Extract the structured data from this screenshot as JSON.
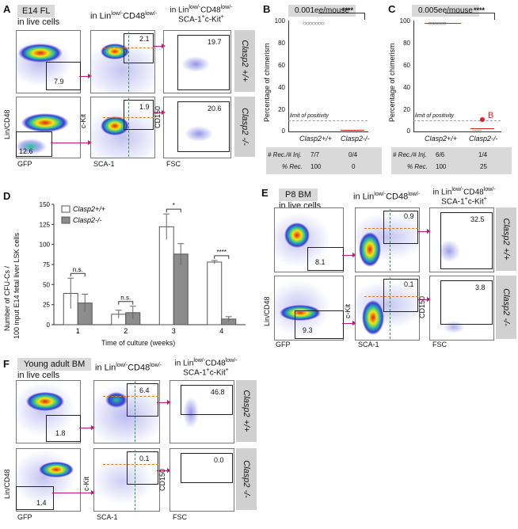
{
  "panelA": {
    "letter": "A",
    "tag": "E14 FL",
    "col1_title": "in live cells",
    "col2_title_a": "in Lin",
    "col2_title_sup": "low/-",
    "col2_title_b": "CD48",
    "col2_title_sup2": "low/-",
    "col3_line1": "in Lin",
    "col3_line1_sup": "low/-",
    "col3_line1_b": "CD48",
    "col3_line1_sup2": "low/-",
    "col3_line2": "SCA-1",
    "col3_line2_sup": "+",
    "col3_line2_b": "c-Kit",
    "col3_line2_sup2": "+",
    "wt": {
      "g1": "7.9",
      "g2": "2.1",
      "g3": "19.7"
    },
    "ko": {
      "g1": "12.6",
      "g2": "1.9",
      "g3": "20.6"
    },
    "side_wt": "Clasp2 +/+",
    "side_ko": "Clasp2 -/-",
    "xlab1": "GFP",
    "xlab2": "SCA-1",
    "xlab3": "FSC",
    "ylab1": "Lin/CD48",
    "ylab2": "c-Kit",
    "ylab3": "CD150"
  },
  "panelB": {
    "letter": "B",
    "tag": "0.001ee/mouse",
    "ylabel": "Percentage of chimerism",
    "yticks": [
      "0",
      "20",
      "40",
      "60",
      "80",
      "100"
    ],
    "xcats": [
      "Clasp2+/+",
      "Clasp2-/-"
    ],
    "sig": "****",
    "limit": "limit of positivity",
    "row1_label": "# Rec./# Inj.",
    "row1_vals": [
      "7/7",
      "0/4"
    ],
    "row2_label": "% Rec.",
    "row2_vals": [
      "100",
      "0"
    ]
  },
  "panelC": {
    "letter": "C",
    "tag": "0.005ee/mouse",
    "ylabel": "Percentage of chimerism",
    "yticks": [
      "0",
      "20",
      "40",
      "60",
      "80",
      "100"
    ],
    "xcats": [
      "Clasp2+/+",
      "Clasp2-/-"
    ],
    "sig": "****",
    "limit": "limit of positivity",
    "marker": "B",
    "row1_label": "# Rec./# Inj.",
    "row1_vals": [
      "6/6",
      "1/4"
    ],
    "row2_label": "% Rec.",
    "row2_vals": [
      "100",
      "25"
    ]
  },
  "panelD": {
    "letter": "D",
    "ylabel1": "Number of CFU-Cs /",
    "ylabel2": "100 input E14 fetal liver LSK cells",
    "xlabel": "Time of culture (weeks)",
    "legend_wt": "Clasp2+/+",
    "legend_ko": "Clasp2-/-",
    "yticks": [
      "0",
      "25",
      "50",
      "75",
      "100",
      "125",
      "150"
    ],
    "sig": [
      "n.s.",
      "n.s.",
      "*",
      "****"
    ]
  },
  "chart_data": {
    "type": "bar",
    "categories": [
      "1",
      "2",
      "3",
      "4"
    ],
    "series": [
      {
        "name": "Clasp2+/+",
        "values": [
          39,
          13,
          122,
          78
        ],
        "errors": [
          19,
          5,
          16,
          2
        ]
      },
      {
        "name": "Clasp2-/-",
        "values": [
          27,
          15,
          88,
          7
        ],
        "errors": [
          11,
          8,
          13,
          3
        ]
      }
    ],
    "xlabel": "Time of culture (weeks)",
    "ylabel": "Number of CFU-Cs / 100 input E14 fetal liver LSK cells",
    "ylim": [
      0,
      150
    ],
    "colors": [
      "#ffffff",
      "#8c8c8c"
    ]
  },
  "panelE": {
    "letter": "E",
    "tag": "P8 BM",
    "col1_title": "in live cells",
    "wt": {
      "g1": "8.1",
      "g2": "0.9",
      "g3": "32.5"
    },
    "ko": {
      "g1": "9.3",
      "g2": "0.1",
      "g3": "3.8"
    },
    "side_wt": "Clasp2 +/+",
    "side_ko": "Clasp2 -/-"
  },
  "panelF": {
    "letter": "F",
    "tag": "Young adult BM",
    "col1_title": "in live cells",
    "wt": {
      "g1": "1.8",
      "g2": "6.4",
      "g3": "46.8"
    },
    "ko": {
      "g1": "1.4",
      "g2": "0.1",
      "g3": "0.0"
    },
    "side_wt": "Clasp2 +/+",
    "side_ko": "Clasp2 -/-"
  },
  "colors": {
    "arrow": "#c2187a",
    "gate_orange": "#e07a10",
    "gate_green": "#2a9a3a",
    "dots": "#3b3bd6",
    "red": "#d22"
  }
}
